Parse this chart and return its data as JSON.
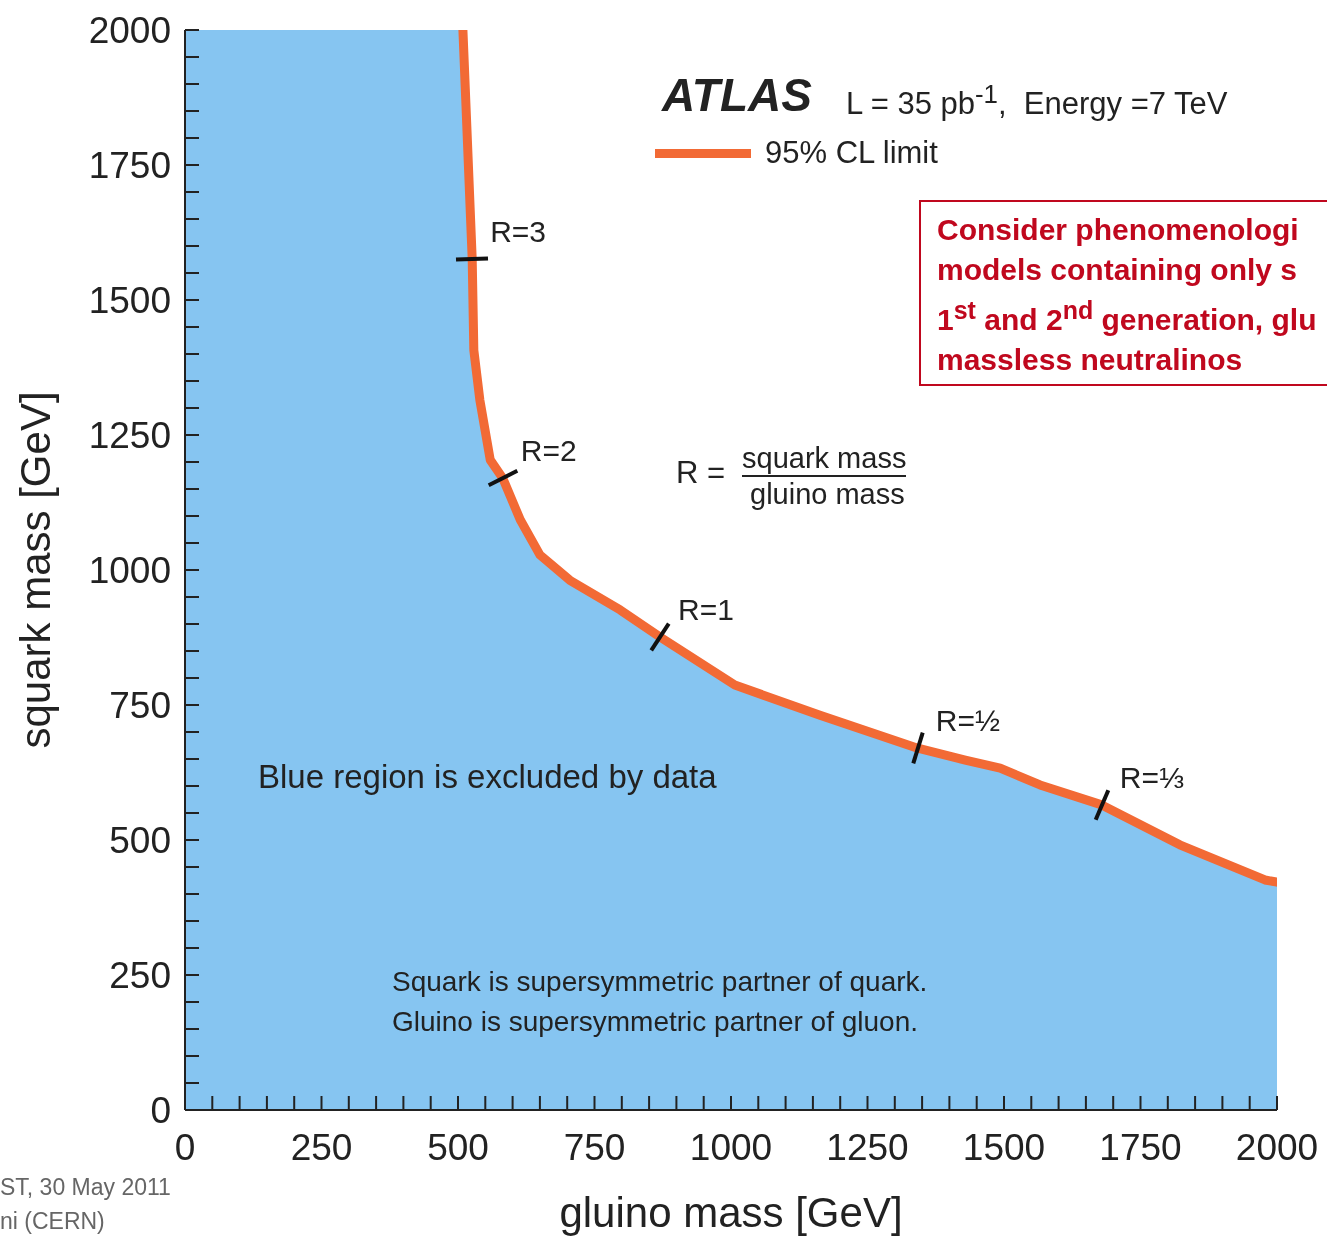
{
  "chart_data": {
    "type": "area",
    "xlabel": "gluino mass [GeV]",
    "ylabel": "squark mass [GeV]",
    "xlim": [
      0,
      2000
    ],
    "ylim": [
      0,
      2000
    ],
    "xticks": [
      0,
      {
        "value": 50,
        "label": null
      },
      {
        "value": 100,
        "label": null
      },
      {
        "value": 150,
        "label": null
      },
      {
        "value": 200,
        "label": null
      },
      250,
      {
        "value": 300,
        "label": null
      },
      {
        "value": 350,
        "label": null
      },
      {
        "value": 400,
        "label": null
      },
      {
        "value": 450,
        "label": null
      },
      500,
      {
        "value": 550,
        "label": null
      },
      {
        "value": 600,
        "label": null
      },
      {
        "value": 650,
        "label": null
      },
      {
        "value": 700,
        "label": null
      },
      750,
      {
        "value": 800,
        "label": null
      },
      {
        "value": 850,
        "label": null
      },
      {
        "value": 900,
        "label": null
      },
      {
        "value": 950,
        "label": null
      },
      1000,
      {
        "value": 1050,
        "label": null
      },
      {
        "value": 1100,
        "label": null
      },
      {
        "value": 1150,
        "label": null
      },
      {
        "value": 1200,
        "label": null
      },
      1250,
      {
        "value": 1300,
        "label": null
      },
      {
        "value": 1350,
        "label": null
      },
      {
        "value": 1400,
        "label": null
      },
      {
        "value": 1450,
        "label": null
      },
      1500,
      {
        "value": 1550,
        "label": null
      },
      {
        "value": 1600,
        "label": null
      },
      {
        "value": 1650,
        "label": null
      },
      {
        "value": 1700,
        "label": null
      },
      1750,
      {
        "value": 1800,
        "label": null
      },
      {
        "value": 1850,
        "label": null
      },
      {
        "value": 1900,
        "label": null
      },
      {
        "value": 1950,
        "label": null
      },
      2000
    ],
    "yticks": [
      0,
      {
        "value": 50,
        "label": null
      },
      {
        "value": 100,
        "label": null
      },
      {
        "value": 150,
        "label": null
      },
      {
        "value": 200,
        "label": null
      },
      250,
      {
        "value": 300,
        "label": null
      },
      {
        "value": 350,
        "label": null
      },
      {
        "value": 400,
        "label": null
      },
      {
        "value": 450,
        "label": null
      },
      500,
      {
        "value": 550,
        "label": null
      },
      {
        "value": 600,
        "label": null
      },
      {
        "value": 650,
        "label": null
      },
      {
        "value": 700,
        "label": null
      },
      750,
      {
        "value": 800,
        "label": null
      },
      {
        "value": 850,
        "label": null
      },
      {
        "value": 900,
        "label": null
      },
      {
        "value": 950,
        "label": null
      },
      1000,
      {
        "value": 1050,
        "label": null
      },
      {
        "value": 1100,
        "label": null
      },
      {
        "value": 1150,
        "label": null
      },
      {
        "value": 1200,
        "label": null
      },
      1250,
      {
        "value": 1300,
        "label": null
      },
      {
        "value": 1350,
        "label": null
      },
      {
        "value": 1400,
        "label": null
      },
      {
        "value": 1450,
        "label": null
      },
      1500,
      {
        "value": 1550,
        "label": null
      },
      {
        "value": 1600,
        "label": null
      },
      {
        "value": 1650,
        "label": null
      },
      {
        "value": 1700,
        "label": null
      },
      1750,
      {
        "value": 1800,
        "label": null
      },
      {
        "value": 1850,
        "label": null
      },
      {
        "value": 1900,
        "label": null
      },
      {
        "value": 1950,
        "label": null
      },
      2000
    ],
    "legend": "top right",
    "series": [
      {
        "color": "#86c5f1",
        "x": [
          0,
          509,
          526,
          529,
          540,
          559,
          582,
          614,
          650,
          705,
          797,
          870,
          1007,
          1163,
          1342,
          1429,
          1493,
          1566,
          1679,
          1822,
          1978,
          2000
        ],
        "values": [
          2000,
          2000,
          1576,
          1407,
          1315,
          1204,
          1170,
          1093,
          1028,
          981,
          926,
          876,
          787,
          731,
          670,
          648,
          633,
          602,
          565,
          491,
          426,
          422
        ]
      },
      {
        "type": "line",
        "name": "95% CL limit",
        "color": "#f26a35",
        "x": [
          509,
          526,
          529,
          540,
          559,
          582,
          614,
          650,
          705,
          797,
          870,
          1007,
          1163,
          1342,
          1429,
          1493,
          1566,
          1679,
          1822,
          1978,
          2000
        ],
        "values": [
          2000,
          1576,
          1407,
          1315,
          1204,
          1170,
          1093,
          1028,
          981,
          926,
          876,
          787,
          731,
          670,
          648,
          633,
          602,
          565,
          491,
          426,
          422
        ]
      }
    ],
    "annotations": [
      "ATLAS",
      "L = 35 pb$^{-1}$,  Energy =7 TeV",
      "Consider phenomenologi\nmodels containing only s\n1$^{st}$ and 2$^{nd}$ generation, glu\nmassless neutralinos",
      "R =",
      "squark mass",
      "gluino mass",
      "Blue region is excluded by data",
      "Squark is supersymmetric partner of quark.\nGluino is supersymmetric partner of gluon.",
      "ST, 30 May 2011\nni (CERN)",
      {
        "text": "R=3",
        "x": 526,
        "y": 1576
      },
      {
        "text": "R=2",
        "x": 582,
        "y": 1170
      },
      {
        "text": "R=1",
        "x": 870,
        "y": 876
      },
      {
        "text": "R=½",
        "x": 1342,
        "y": 670
      },
      {
        "text": "R=⅓",
        "x": 1679,
        "y": 565
      }
    ]
  }
}
